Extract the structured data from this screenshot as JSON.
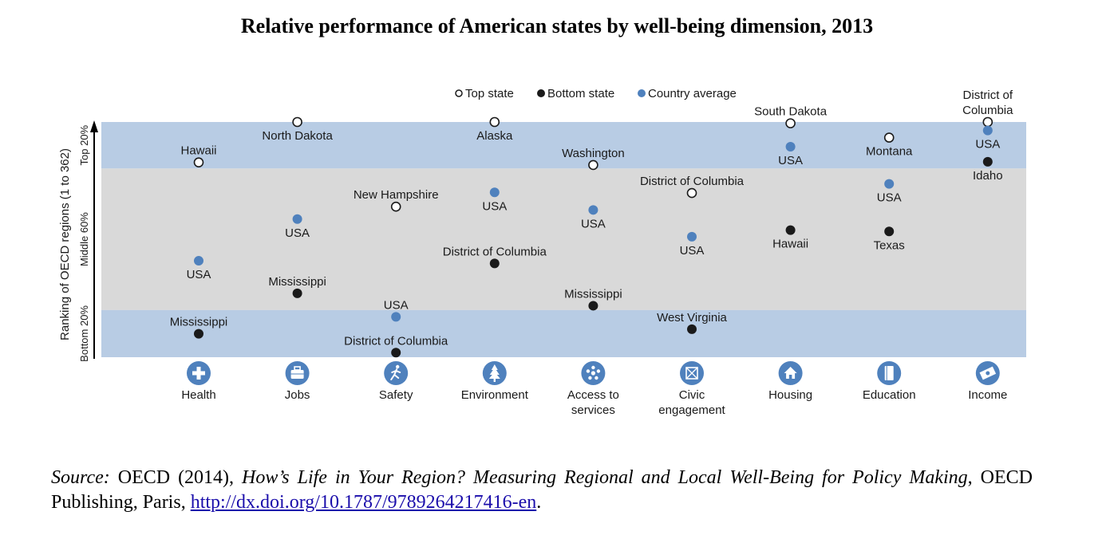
{
  "title": "Relative performance of American states by well-being dimension, 2013",
  "chart_data": {
    "type": "scatter",
    "title": "Relative performance of American states by well-being dimension, 2013",
    "xlabel": "",
    "ylabel": "Ranking of OECD regions (1 to 362)",
    "ylim": [
      1,
      362
    ],
    "y_inverted": true,
    "bands": [
      {
        "label": "Top 20%",
        "from": 1,
        "to": 72.4,
        "color": "#b8cce4"
      },
      {
        "label": "Middle 60%",
        "from": 72.4,
        "to": 289.6,
        "color": "#d9d9d9"
      },
      {
        "label": "Bottom 20%",
        "from": 289.6,
        "to": 362,
        "color": "#b8cce4"
      }
    ],
    "legend": {
      "position": "top",
      "entries": [
        {
          "key": "top",
          "label": "Top state"
        },
        {
          "key": "bottom",
          "label": "Bottom state"
        },
        {
          "key": "avg",
          "label": "Country average"
        }
      ]
    },
    "colors": {
      "top_fill": "#ffffff",
      "top_stroke": "#1a1a1a",
      "bottom": "#1a1a1a",
      "avg": "#4f81bd",
      "icon": "#4f81bd"
    },
    "categories": [
      {
        "label": "Health",
        "icon": "health-cross-icon"
      },
      {
        "label": "Jobs",
        "icon": "briefcase-icon"
      },
      {
        "label": "Safety",
        "icon": "running-person-icon"
      },
      {
        "label": "Environment",
        "icon": "tree-icon"
      },
      {
        "label": "Access to services",
        "label_lines": [
          "Access to",
          "services"
        ],
        "icon": "network-nodes-icon"
      },
      {
        "label": "Civic engagement",
        "label_lines": [
          "Civic",
          "engagement"
        ],
        "icon": "ballot-box-icon"
      },
      {
        "label": "Housing",
        "icon": "house-icon"
      },
      {
        "label": "Education",
        "icon": "book-icon"
      },
      {
        "label": "Income",
        "icon": "money-icon"
      }
    ],
    "series": [
      {
        "name": "Top state",
        "key": "top",
        "points": [
          {
            "category": "Health",
            "state": "Hawaii",
            "rank": 63,
            "label_pos": "above"
          },
          {
            "category": "Jobs",
            "state": "North Dakota",
            "rank": 1,
            "label_pos": "below"
          },
          {
            "category": "Safety",
            "state": "New Hampshire",
            "rank": 131,
            "label_pos": "above"
          },
          {
            "category": "Environment",
            "state": "Alaska",
            "rank": 1,
            "label_pos": "below"
          },
          {
            "category": "Access to services",
            "state": "Washington",
            "rank": 67,
            "label_pos": "above"
          },
          {
            "category": "Civic engagement",
            "state": "District of Columbia",
            "rank": 110,
            "label_pos": "above"
          },
          {
            "category": "Housing",
            "state": "South Dakota",
            "rank": 3,
            "label_pos": "above"
          },
          {
            "category": "Education",
            "state": "Montana",
            "rank": 25,
            "label_pos": "below"
          },
          {
            "category": "Income",
            "state": "District of Columbia",
            "label_lines": [
              "District of",
              "Columbia"
            ],
            "rank": 1,
            "label_pos": "above"
          }
        ]
      },
      {
        "name": "Bottom state",
        "key": "bottom",
        "points": [
          {
            "category": "Health",
            "state": "Mississippi",
            "rank": 326,
            "label_pos": "above"
          },
          {
            "category": "Jobs",
            "state": "Mississippi",
            "rank": 264,
            "label_pos": "above"
          },
          {
            "category": "Safety",
            "state": "District of Columbia",
            "rank": 355,
            "label_pos": "above"
          },
          {
            "category": "Environment",
            "state": "District of Columbia",
            "rank": 218,
            "label_pos": "above"
          },
          {
            "category": "Access to services",
            "state": "Mississippi",
            "rank": 283,
            "label_pos": "above"
          },
          {
            "category": "Civic engagement",
            "state": "West Virginia",
            "rank": 319,
            "label_pos": "above"
          },
          {
            "category": "Housing",
            "state": "Hawaii",
            "rank": 167,
            "label_pos": "below"
          },
          {
            "category": "Education",
            "state": "Texas",
            "rank": 169,
            "label_pos": "below"
          },
          {
            "category": "Income",
            "state": "Idaho",
            "rank": 62,
            "label_pos": "below"
          }
        ]
      },
      {
        "name": "Country average",
        "key": "avg",
        "points": [
          {
            "category": "Health",
            "state": "USA",
            "rank": 214,
            "label_pos": "below"
          },
          {
            "category": "Jobs",
            "state": "USA",
            "rank": 150,
            "label_pos": "below"
          },
          {
            "category": "Safety",
            "state": "USA",
            "rank": 300,
            "label_pos": "above"
          },
          {
            "category": "Environment",
            "state": "USA",
            "rank": 109,
            "label_pos": "below"
          },
          {
            "category": "Access to services",
            "state": "USA",
            "rank": 136,
            "label_pos": "below"
          },
          {
            "category": "Civic engagement",
            "state": "USA",
            "rank": 177,
            "label_pos": "below"
          },
          {
            "category": "Housing",
            "state": "USA",
            "rank": 39,
            "label_pos": "below"
          },
          {
            "category": "Education",
            "state": "USA",
            "rank": 96,
            "label_pos": "below"
          },
          {
            "category": "Income",
            "state": "USA",
            "rank": 14,
            "label_pos": "below"
          }
        ]
      }
    ]
  },
  "source": {
    "prefix": "Source:",
    "text1": " OECD (2014), ",
    "book_title": "How’s Life in Your Region? Measuring Regional and Local Well-Being for Policy Making",
    "text2": ", OECD Publishing, Paris, ",
    "link": "http://dx.doi.org/10.1787/9789264217416-en",
    "suffix": "."
  }
}
